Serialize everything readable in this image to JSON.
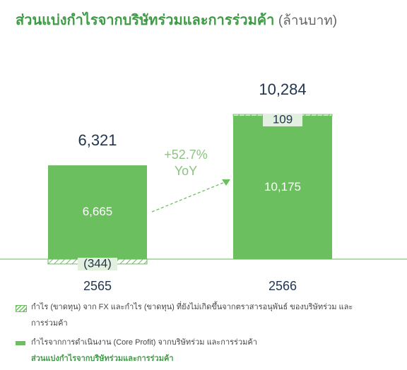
{
  "chart_data": {
    "type": "stacked_bar",
    "title": "ส่วนแบ่งกำไรจากบริษัทร่วมและการร่วมค้า",
    "title_unit": "(ล้านบาท)",
    "categories": [
      "2565",
      "2566"
    ],
    "series": [
      {
        "name": "กำไรจากการดำเนินงาน (Core Profit) จากบริษัทร่วม และการร่วมค้า",
        "color": "#6cbf5f",
        "values": [
          6665,
          10175
        ],
        "value_labels": [
          "6,665",
          "10,175"
        ]
      },
      {
        "name": "กำไร (ขาดทุน) จาก FX และกำไร (ขาดทุน) ที่ยังไม่เกิดขึ้นจากตราสารอนุพันธ์ ของบริษัทร่วม และการร่วมค้า",
        "color": "#6cbf5f",
        "pattern": "hatch",
        "values": [
          -344,
          109
        ],
        "value_labels": [
          "(344)",
          "109"
        ]
      }
    ],
    "totals": {
      "name": "ส่วนแบ่งกำไรจากบริษัทร่วมและการร่วมค้า",
      "values": [
        6321,
        10284
      ],
      "value_labels": [
        "6,321",
        "10,284"
      ]
    },
    "annotations": [
      "+52.7%",
      "YoY"
    ]
  }
}
